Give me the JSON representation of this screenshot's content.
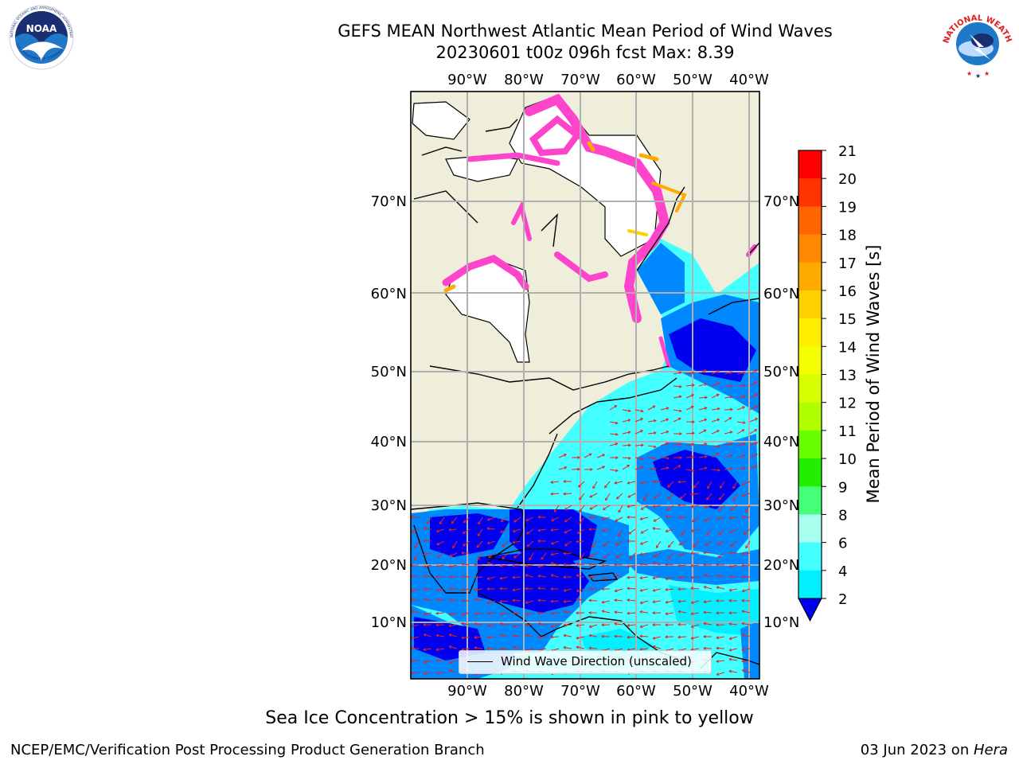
{
  "title": {
    "line1": "GEFS MEAN Northwest Atlantic Mean Period of Wind Waves",
    "line2": "20230601 t00z 096h fcst   Max: 8.39"
  },
  "map": {
    "lon_labels": [
      "90°W",
      "80°W",
      "70°W",
      "60°W",
      "50°W",
      "40°W"
    ],
    "lat_labels": [
      "70°N",
      "60°N",
      "50°N",
      "40°N",
      "30°N",
      "20°N",
      "10°N"
    ],
    "legend_label": "Wind Wave Direction (unscaled)",
    "colors": {
      "land": "#efeedb",
      "ice_free_white": "#ffffff",
      "gridline": "#b0b0b0",
      "arrow": "#e8231c"
    }
  },
  "colorbar": {
    "label": "Mean Period of Wind Waves [s]",
    "ticks": [
      "21",
      "20",
      "19",
      "18",
      "17",
      "16",
      "15",
      "14",
      "13",
      "12",
      "11",
      "10",
      "9",
      "8",
      "6",
      "4",
      "2"
    ],
    "colors": [
      "#ff0000",
      "#ff3300",
      "#ff6600",
      "#ff8800",
      "#ffaa00",
      "#ffd000",
      "#ffee00",
      "#f5ff00",
      "#d8ff00",
      "#b0ff00",
      "#66ff00",
      "#22ee00",
      "#44ff77",
      "#a8ffee",
      "#44ffff",
      "#00f0ff",
      "#0088ff"
    ],
    "extend_color": "#0000ee"
  },
  "ice_note": "Sea Ice Concentration > 15% is shown in pink to yellow",
  "footer": {
    "left": "NCEP/EMC/Verification Post Processing Product Generation Branch",
    "date": "03 Jun 2023 on ",
    "machine": "Hera"
  },
  "logos": {
    "noaa": "NOAA",
    "noaa_ring": "NATIONAL OCEANIC AND ATMOSPHERIC ADMINISTRATION",
    "noaa_ring_bottom": "U.S. DEPARTMENT OF COMMERCE",
    "nws_ring": "NATIONAL WEATHER SERVICE"
  }
}
